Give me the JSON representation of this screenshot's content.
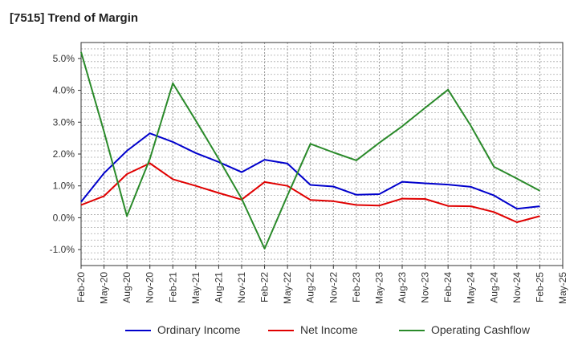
{
  "chart_data": {
    "type": "line",
    "title": "[7515]  Trend of Margin",
    "xlabel": "",
    "ylabel": "",
    "ylim": [
      -1.5,
      5.5
    ],
    "y_ticks": [
      -1.0,
      0.0,
      1.0,
      2.0,
      3.0,
      4.0,
      5.0
    ],
    "y_tick_labels": [
      "-1.0%",
      "0.0%",
      "1.0%",
      "2.0%",
      "3.0%",
      "4.0%",
      "5.0%"
    ],
    "categories": [
      "Feb-20",
      "May-20",
      "Aug-20",
      "Nov-20",
      "Feb-21",
      "May-21",
      "Aug-21",
      "Nov-21",
      "Feb-22",
      "May-22",
      "Aug-22",
      "Nov-22",
      "Feb-23",
      "May-23",
      "Aug-23",
      "Nov-23",
      "Feb-24",
      "May-24",
      "Aug-24",
      "Nov-24",
      "Feb-25",
      "May-25"
    ],
    "grid": true,
    "legend_position": "bottom",
    "series": [
      {
        "name": "Ordinary Income",
        "color": "#0000cc",
        "values": [
          0.5,
          1.4,
          2.1,
          2.65,
          2.38,
          2.03,
          1.75,
          1.43,
          1.82,
          1.7,
          1.03,
          0.98,
          0.72,
          0.74,
          1.13,
          1.08,
          1.04,
          0.97,
          0.7,
          0.28,
          0.36,
          null
        ]
      },
      {
        "name": "Net Income",
        "color": "#e00000",
        "values": [
          0.4,
          0.68,
          1.37,
          1.71,
          1.21,
          1.0,
          0.78,
          0.57,
          1.12,
          1.0,
          0.56,
          0.52,
          0.4,
          0.38,
          0.6,
          0.59,
          0.37,
          0.36,
          0.18,
          -0.14,
          0.05,
          null
        ]
      },
      {
        "name": "Operating Cashflow",
        "color": "#2a8a2a",
        "values": [
          5.2,
          2.7,
          0.05,
          1.85,
          4.22,
          3.05,
          1.85,
          0.6,
          -0.97,
          0.7,
          2.32,
          2.05,
          1.8,
          2.35,
          2.87,
          3.45,
          4.02,
          2.88,
          1.6,
          1.23,
          0.85,
          null
        ]
      }
    ]
  }
}
